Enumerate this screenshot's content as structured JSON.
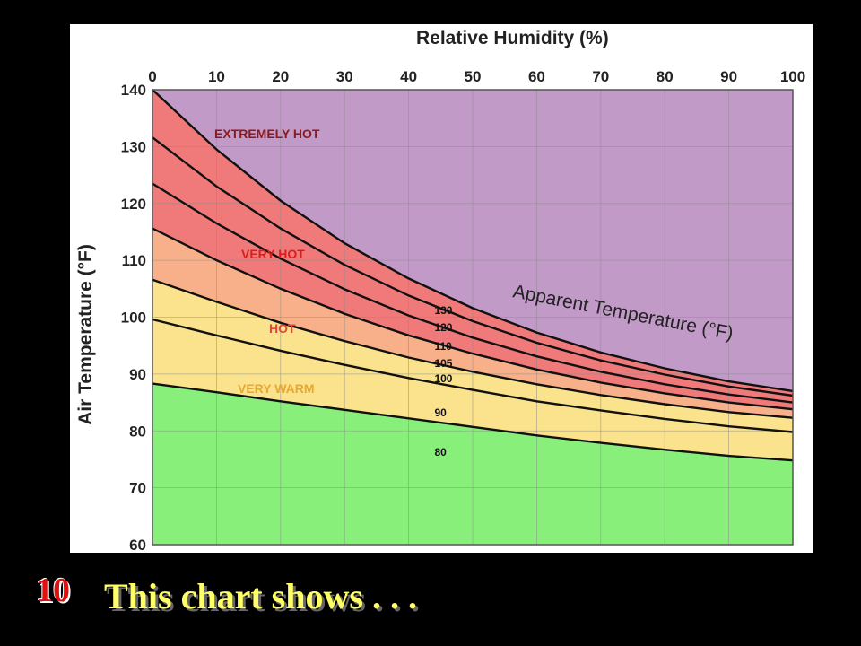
{
  "slide": {
    "number": "10",
    "caption": "This chart shows . . ."
  },
  "chart_data": {
    "type": "line",
    "title": "Relative Humidity (%)",
    "xlabel": "Relative Humidity (%)",
    "ylabel": "Air Temperature (°F)",
    "x_ticks": [
      0,
      10,
      20,
      30,
      40,
      50,
      60,
      70,
      80,
      90,
      100
    ],
    "y_ticks": [
      60,
      70,
      80,
      90,
      100,
      110,
      120,
      130,
      140
    ],
    "xlim": [
      0,
      100
    ],
    "ylim": [
      60,
      140
    ],
    "grid": true,
    "x_axis_position": "top",
    "annotation": "Apparent Temperature (°F)",
    "x": [
      0,
      10,
      20,
      30,
      40,
      50,
      60,
      70,
      80,
      90,
      100
    ],
    "series": [
      {
        "name": "80",
        "values": [
          88.3,
          86.8,
          85.2,
          83.7,
          82.2,
          80.7,
          79.2,
          77.9,
          76.7,
          75.6,
          74.8
        ]
      },
      {
        "name": "90",
        "values": [
          99.6,
          96.8,
          94.1,
          91.6,
          89.3,
          87.2,
          85.2,
          83.6,
          82.1,
          80.8,
          79.8
        ]
      },
      {
        "name": "100",
        "values": [
          106.6,
          102.7,
          99.0,
          95.8,
          92.9,
          90.4,
          88.2,
          86.3,
          84.7,
          83.3,
          82.3
        ]
      },
      {
        "name": "105",
        "values": [
          115.6,
          110.0,
          105.0,
          100.6,
          96.8,
          93.6,
          90.8,
          88.5,
          86.6,
          85.0,
          83.8
        ]
      },
      {
        "name": "110",
        "values": [
          123.5,
          116.5,
          110.3,
          104.9,
          100.3,
          96.4,
          93.1,
          90.4,
          88.2,
          86.4,
          85.0
        ]
      },
      {
        "name": "120",
        "values": [
          131.6,
          123.0,
          115.6,
          109.2,
          103.8,
          99.3,
          95.5,
          92.4,
          89.9,
          87.8,
          86.2
        ]
      },
      {
        "name": "130",
        "values": [
          140.0,
          129.5,
          120.5,
          113.0,
          106.8,
          101.6,
          97.3,
          93.8,
          91.0,
          88.7,
          87.0
        ]
      }
    ],
    "zones": [
      {
        "name": "EXTREMELY HOT",
        "color": "#c29ac8",
        "label_color": "#8b1a1a"
      },
      {
        "name": "VERY HOT",
        "color": "#f07a7a",
        "label_color": "#d91e1e"
      },
      {
        "name": "HOT",
        "color": "#f8b08a",
        "label_color": "#e0463c"
      },
      {
        "name": "VERY WARM",
        "color": "#fbe28c",
        "label_color": "#e8a830"
      },
      {
        "name": "",
        "color": "#88f07a",
        "label_color": ""
      }
    ]
  }
}
